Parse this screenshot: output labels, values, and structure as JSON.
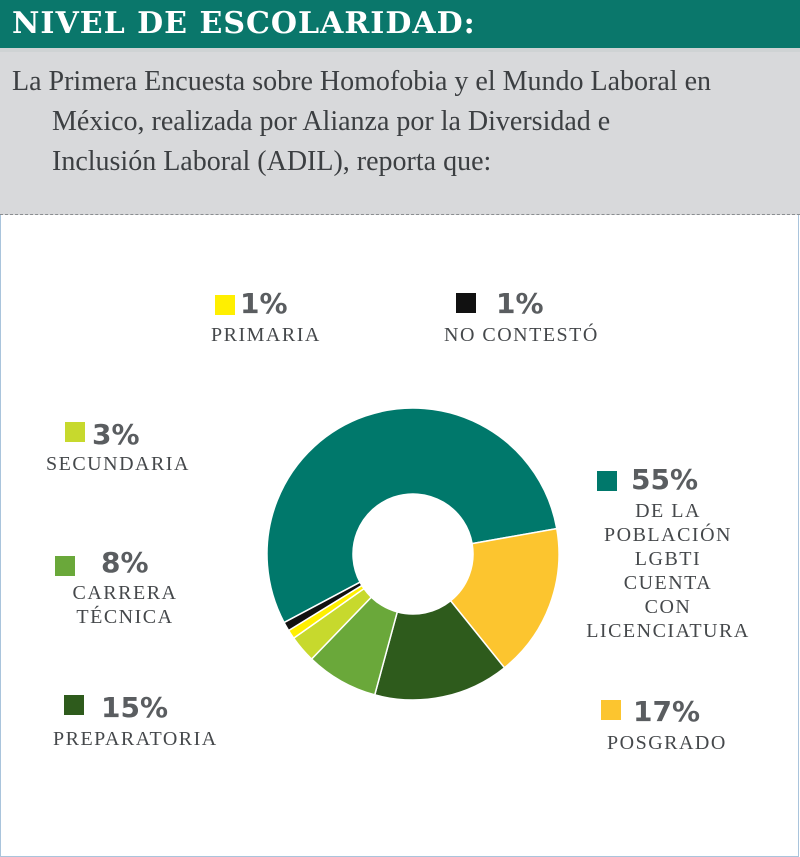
{
  "header": {
    "title": "NIVEL DE ESCOLARIDAD:"
  },
  "intro": {
    "lines": [
      "La Primera Encuesta sobre Homofobia y el Mundo Laboral en",
      "México, realizada por Alianza por la Diversidad e",
      "Inclusión Laboral (ADIL), reporta que:"
    ]
  },
  "colors": {
    "header_bg": "#0a776b",
    "intro_bg": "#d8d9db",
    "licenciatura": "#00786b",
    "posgrado": "#fcc52f",
    "preparatoria": "#2e5b1c",
    "carrera_tecnica": "#6aa83a",
    "secundaria": "#c7d92d",
    "primaria": "#ffef00",
    "no_contesto": "#111111"
  },
  "chart_data": {
    "type": "pie",
    "donut": true,
    "title": "",
    "slices": [
      {
        "key": "licenciatura",
        "value": 55,
        "pct_label": "55%",
        "label_lines": [
          "DE LA",
          "POBLACIÓN",
          "LGBTI",
          "CUENTA",
          "CON",
          "LICENCIATURA"
        ]
      },
      {
        "key": "posgrado",
        "value": 17,
        "pct_label": "17%",
        "label_lines": [
          "POSGRADO"
        ]
      },
      {
        "key": "preparatoria",
        "value": 15,
        "pct_label": "15%",
        "label_lines": [
          "PREPARATORIA"
        ]
      },
      {
        "key": "carrera_tecnica",
        "value": 8,
        "pct_label": "8%",
        "label_lines": [
          "CARRERA",
          "TÉCNICA"
        ]
      },
      {
        "key": "secundaria",
        "value": 3,
        "pct_label": "3%",
        "label_lines": [
          "SECUNDARIA"
        ]
      },
      {
        "key": "primaria",
        "value": 1,
        "pct_label": "1%",
        "label_lines": [
          "PRIMARIA"
        ]
      },
      {
        "key": "no_contesto",
        "value": 1,
        "pct_label": "1%",
        "label_lines": [
          "NO CONTESTÓ"
        ]
      }
    ]
  }
}
